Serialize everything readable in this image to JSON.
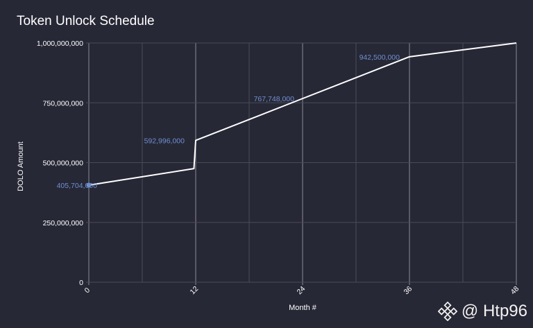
{
  "header": {
    "title": "Token Unlock Schedule"
  },
  "watermark": {
    "text": "@ Htp96",
    "logo_icon": "binance-logo-icon"
  },
  "colors": {
    "background": "#272836",
    "line": "#ffffff",
    "label": "#6f8fd0",
    "grid": "#4a4b58",
    "major_grid": "#8c8c96"
  },
  "chart_data": {
    "type": "line",
    "title": "Token Unlock Schedule",
    "xlabel": "Month #",
    "ylabel": "DOLO Amount",
    "xlim": [
      0,
      48
    ],
    "ylim": [
      0,
      1000000000
    ],
    "x_ticks": [
      0,
      12,
      24,
      36,
      48
    ],
    "x_tick_labels": [
      "0",
      "12",
      "24",
      "36",
      "48"
    ],
    "y_ticks": [
      0,
      250000000,
      500000000,
      750000000,
      1000000000
    ],
    "y_tick_labels": [
      "0",
      "250,000,000",
      "500,000,000",
      "750,000,000",
      "1,000,000,000"
    ],
    "grid": true,
    "series": [
      {
        "x": [
          0,
          11.8,
          12,
          24,
          36,
          48
        ],
        "y": [
          405704000,
          475000000,
          592996000,
          767748000,
          942500000,
          1000000000
        ]
      }
    ],
    "annotations": [
      {
        "x": 0,
        "y": 405704000,
        "text": "405,704,000"
      },
      {
        "x": 12,
        "y": 592996000,
        "text": "592,996,000"
      },
      {
        "x": 24,
        "y": 767748000,
        "text": "767,748,000"
      },
      {
        "x": 36,
        "y": 942500000,
        "text": "942,500,000"
      }
    ]
  }
}
